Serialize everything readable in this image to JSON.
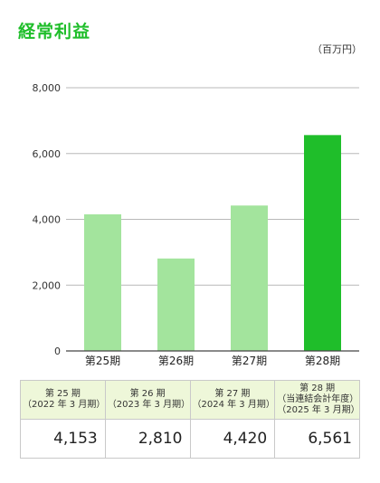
{
  "title": "経常利益",
  "unit": "（百万円）",
  "colors": {
    "title": "#1fbe2a",
    "bar_light": "#a3e49d",
    "bar_highlight": "#1fbe2a"
  },
  "chart_data": {
    "type": "bar",
    "categories": [
      "第25期",
      "第26期",
      "第27期",
      "第28期"
    ],
    "values": [
      4153,
      2810,
      4420,
      6561
    ],
    "highlight_index": 3,
    "ylim": [
      0,
      8000
    ],
    "yticks": [
      "8,000",
      "6,000",
      "4,000",
      "2,000",
      "0"
    ],
    "ytick_values": [
      8000,
      6000,
      4000,
      2000,
      0
    ],
    "grid": true,
    "title": "経常利益"
  },
  "table": {
    "headers": [
      [
        "第 25 期",
        "（2022 年 3 月期）"
      ],
      [
        "第 26 期",
        "（2023 年 3 月期）"
      ],
      [
        "第 27 期",
        "（2024 年 3 月期）"
      ],
      [
        "第 28 期",
        "（当連結会計年度）",
        "（2025 年 3 月期）"
      ]
    ],
    "values": [
      "4,153",
      "2,810",
      "4,420",
      "6,561"
    ]
  }
}
